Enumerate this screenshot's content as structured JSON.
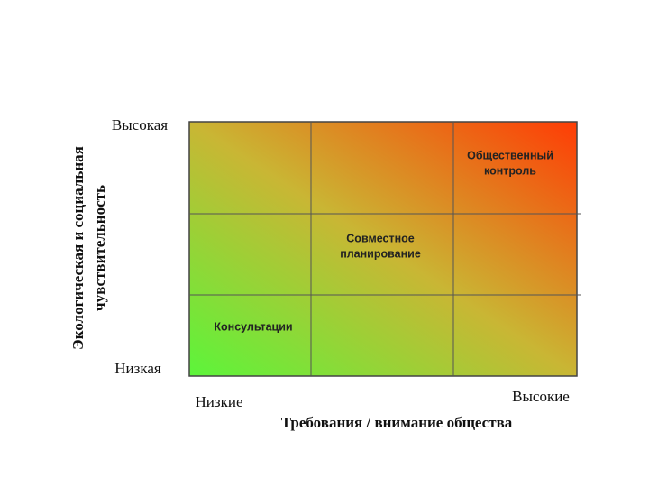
{
  "axes": {
    "y_title": [
      "Экологическая и социальная",
      "чувствительность"
    ],
    "y_high": "Высокая",
    "y_low": "Низкая",
    "x_low": "Низкие",
    "x_high": "Высокие",
    "x_title": "Требования / внимание общества"
  },
  "cells": [
    {
      "label": [
        "Общественный",
        "контроль"
      ]
    },
    {
      "label": [
        "Совместное",
        "планирование"
      ]
    },
    {
      "label": [
        "Консультации"
      ]
    }
  ]
}
